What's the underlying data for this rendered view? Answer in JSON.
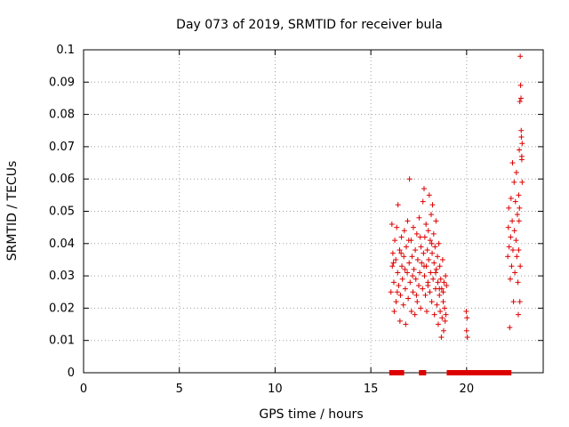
{
  "chart_data": {
    "type": "scatter",
    "title": "Day 073 of 2019, SRMTID for receiver bula",
    "xlabel": "GPS time / hours",
    "ylabel": "SRMTID / TECUs",
    "xlim": [
      0,
      24
    ],
    "ylim": [
      0,
      0.1
    ],
    "xticks": [
      0,
      5,
      10,
      15,
      20
    ],
    "xtick_labels": [
      "0",
      "5",
      "10",
      "15",
      "20"
    ],
    "yticks": [
      0,
      0.01,
      0.02,
      0.03,
      0.04,
      0.05,
      0.06,
      0.07,
      0.08,
      0.09,
      0.1
    ],
    "ytick_labels": [
      "0",
      "0.01",
      "0.02",
      "0.03",
      "0.04",
      "0.05",
      "0.06",
      "0.07",
      "0.08",
      "0.09",
      "0.1"
    ],
    "grid": true,
    "marker": "+",
    "series": [
      {
        "name": "SRMTID",
        "color": "#dd0000",
        "points": [
          [
            16.05,
            0.025
          ],
          [
            16.1,
            0.046
          ],
          [
            16.12,
            0.033
          ],
          [
            16.15,
            0.037
          ],
          [
            16.2,
            0.028
          ],
          [
            16.22,
            0.019
          ],
          [
            16.25,
            0.041
          ],
          [
            16.3,
            0.035
          ],
          [
            16.32,
            0.022
          ],
          [
            16.35,
            0.045
          ],
          [
            16.4,
            0.031
          ],
          [
            16.42,
            0.052
          ],
          [
            16.45,
            0.027
          ],
          [
            16.5,
            0.038
          ],
          [
            16.52,
            0.016
          ],
          [
            16.55,
            0.024
          ],
          [
            16.6,
            0.042
          ],
          [
            16.62,
            0.033
          ],
          [
            16.65,
            0.029
          ],
          [
            16.7,
            0.021
          ],
          [
            16.72,
            0.036
          ],
          [
            16.75,
            0.044
          ],
          [
            16.8,
            0.026
          ],
          [
            16.82,
            0.015
          ],
          [
            16.85,
            0.039
          ],
          [
            16.9,
            0.031
          ],
          [
            16.92,
            0.047
          ],
          [
            16.95,
            0.023
          ],
          [
            17.0,
            0.034
          ],
          [
            17.02,
            0.06
          ],
          [
            17.05,
            0.028
          ],
          [
            17.1,
            0.041
          ],
          [
            17.12,
            0.019
          ],
          [
            17.15,
            0.036
          ],
          [
            17.2,
            0.025
          ],
          [
            17.22,
            0.045
          ],
          [
            17.25,
            0.032
          ],
          [
            17.3,
            0.018
          ],
          [
            17.32,
            0.038
          ],
          [
            17.35,
            0.029
          ],
          [
            17.4,
            0.043
          ],
          [
            17.42,
            0.022
          ],
          [
            17.45,
            0.035
          ],
          [
            17.5,
            0.027
          ],
          [
            17.52,
            0.048
          ],
          [
            17.55,
            0.031
          ],
          [
            17.6,
            0.02
          ],
          [
            17.62,
            0.039
          ],
          [
            17.65,
            0.034
          ],
          [
            17.7,
            0.026
          ],
          [
            17.72,
            0.053
          ],
          [
            17.75,
            0.037
          ],
          [
            17.78,
            0.057
          ],
          [
            17.8,
            0.03
          ],
          [
            17.82,
            0.042
          ],
          [
            17.85,
            0.024
          ],
          [
            17.88,
            0.046
          ],
          [
            17.9,
            0.033
          ],
          [
            17.92,
            0.019
          ],
          [
            17.95,
            0.038
          ],
          [
            17.98,
            0.028
          ],
          [
            18.0,
            0.044
          ],
          [
            18.02,
            0.035
          ],
          [
            18.05,
            0.055
          ],
          [
            18.08,
            0.025
          ],
          [
            18.1,
            0.041
          ],
          [
            18.12,
            0.031
          ],
          [
            18.15,
            0.049
          ],
          [
            18.18,
            0.022
          ],
          [
            18.2,
            0.037
          ],
          [
            18.22,
            0.052
          ],
          [
            18.25,
            0.029
          ],
          [
            18.28,
            0.043
          ],
          [
            18.3,
            0.034
          ],
          [
            18.32,
            0.018
          ],
          [
            18.35,
            0.039
          ],
          [
            18.38,
            0.026
          ],
          [
            18.4,
            0.047
          ],
          [
            18.42,
            0.032
          ],
          [
            18.45,
            0.021
          ],
          [
            18.48,
            0.036
          ],
          [
            18.5,
            0.028
          ],
          [
            18.52,
            0.015
          ],
          [
            18.55,
            0.04
          ],
          [
            18.58,
            0.024
          ],
          [
            18.6,
            0.033
          ],
          [
            18.62,
            0.019
          ],
          [
            18.65,
            0.029
          ],
          [
            18.68,
            0.011
          ],
          [
            18.7,
            0.026
          ],
          [
            18.72,
            0.017
          ],
          [
            18.75,
            0.035
          ],
          [
            18.78,
            0.022
          ],
          [
            18.8,
            0.013
          ],
          [
            18.82,
            0.028
          ],
          [
            18.85,
            0.02
          ],
          [
            18.88,
            0.016
          ],
          [
            18.9,
            0.03
          ],
          [
            18.92,
            0.018
          ],
          [
            18.95,
            0.027
          ],
          [
            16.18,
            0.034
          ],
          [
            16.38,
            0.025
          ],
          [
            16.58,
            0.037
          ],
          [
            16.78,
            0.032
          ],
          [
            16.98,
            0.041
          ],
          [
            17.18,
            0.03
          ],
          [
            17.38,
            0.024
          ],
          [
            17.58,
            0.042
          ],
          [
            17.78,
            0.033
          ],
          [
            17.98,
            0.027
          ],
          [
            18.18,
            0.04
          ],
          [
            18.38,
            0.031
          ],
          [
            18.58,
            0.026
          ],
          [
            18.78,
            0.025
          ],
          [
            19.98,
            0.019
          ],
          [
            20.0,
            0.013
          ],
          [
            20.02,
            0.017
          ],
          [
            20.04,
            0.011
          ],
          [
            22.15,
            0.036
          ],
          [
            22.18,
            0.045
          ],
          [
            22.2,
            0.051
          ],
          [
            22.22,
            0.039
          ],
          [
            22.25,
            0.014
          ],
          [
            22.28,
            0.029
          ],
          [
            22.3,
            0.042
          ],
          [
            22.32,
            0.054
          ],
          [
            22.35,
            0.033
          ],
          [
            22.38,
            0.047
          ],
          [
            22.4,
            0.065
          ],
          [
            22.42,
            0.038
          ],
          [
            22.45,
            0.022
          ],
          [
            22.48,
            0.059
          ],
          [
            22.5,
            0.044
          ],
          [
            22.52,
            0.031
          ],
          [
            22.55,
            0.053
          ],
          [
            22.58,
            0.041
          ],
          [
            22.6,
            0.062
          ],
          [
            22.62,
            0.036
          ],
          [
            22.65,
            0.049
          ],
          [
            22.68,
            0.028
          ],
          [
            22.7,
            0.018
          ],
          [
            22.72,
            0.055
          ],
          [
            22.75,
            0.069
          ],
          [
            22.78,
            0.084
          ],
          [
            22.8,
            0.098
          ],
          [
            22.82,
            0.089
          ],
          [
            22.85,
            0.075
          ],
          [
            22.88,
            0.066
          ],
          [
            22.9,
            0.059
          ],
          [
            22.72,
            0.038
          ],
          [
            22.74,
            0.047
          ],
          [
            22.76,
            0.051
          ],
          [
            22.78,
            0.022
          ],
          [
            22.8,
            0.033
          ],
          [
            22.84,
            0.085
          ],
          [
            22.86,
            0.073
          ],
          [
            22.88,
            0.067
          ],
          [
            22.9,
            0.071
          ]
        ],
        "zero_points_x": [
          16.1,
          16.15,
          16.2,
          16.25,
          16.5,
          16.55,
          16.6,
          17.65,
          17.7,
          17.75,
          19.1,
          19.2,
          19.3,
          19.4,
          19.5,
          19.6,
          19.7,
          19.8,
          19.9,
          20.0,
          20.1,
          20.2,
          20.3,
          20.4,
          20.5,
          20.6,
          20.7,
          20.8,
          20.9,
          21.0,
          21.1,
          21.2,
          21.3,
          21.4,
          21.5,
          21.6,
          21.7,
          21.8,
          21.9,
          22.0,
          22.1,
          22.2
        ]
      }
    ]
  }
}
